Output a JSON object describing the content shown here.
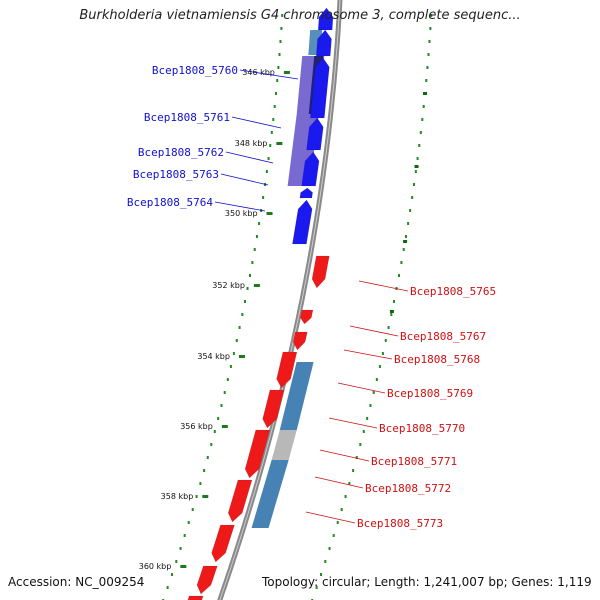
{
  "title": "Burkholderia vietnamiensis G4 chromosome 3, complete sequenc...",
  "footer": {
    "accession": "Accession: NC_009254",
    "topology": "Topology: circular; Length: 1,241,007 bp; Genes: 1,119"
  },
  "colors": {
    "forward_gene": "#1a1aee",
    "reverse_gene": "#ee1a1a",
    "forward_label": "#1111cc",
    "reverse_label": "#cc1111",
    "cog_purple": "#6a5acd",
    "cog_navy": "#1a1a66",
    "cog_steel": "#4682b4",
    "cog_gray": "#b8b8b8",
    "backbone": "#8a8a8a",
    "gc_dots": "#228b22"
  },
  "ticks": [
    {
      "label": "346 kbp",
      "kbp": 346
    },
    {
      "label": "348 kbp",
      "kbp": 348
    },
    {
      "label": "350 kbp",
      "kbp": 350
    },
    {
      "label": "352 kbp",
      "kbp": 352
    },
    {
      "label": "354 kbp",
      "kbp": 354
    },
    {
      "label": "356 kbp",
      "kbp": 356
    },
    {
      "label": "358 kbp",
      "kbp": 358
    },
    {
      "label": "360 kbp",
      "kbp": 360
    }
  ],
  "genes_forward": [
    {
      "name": "Bcep1808_5760"
    },
    {
      "name": "Bcep1808_5761"
    },
    {
      "name": "Bcep1808_5762"
    },
    {
      "name": "Bcep1808_5763"
    },
    {
      "name": "Bcep1808_5764"
    }
  ],
  "genes_reverse": [
    {
      "name": "Bcep1808_5765"
    },
    {
      "name": "Bcep1808_5767"
    },
    {
      "name": "Bcep1808_5768"
    },
    {
      "name": "Bcep1808_5769"
    },
    {
      "name": "Bcep1808_5770"
    },
    {
      "name": "Bcep1808_5771"
    },
    {
      "name": "Bcep1808_5772"
    },
    {
      "name": "Bcep1808_5773"
    }
  ]
}
